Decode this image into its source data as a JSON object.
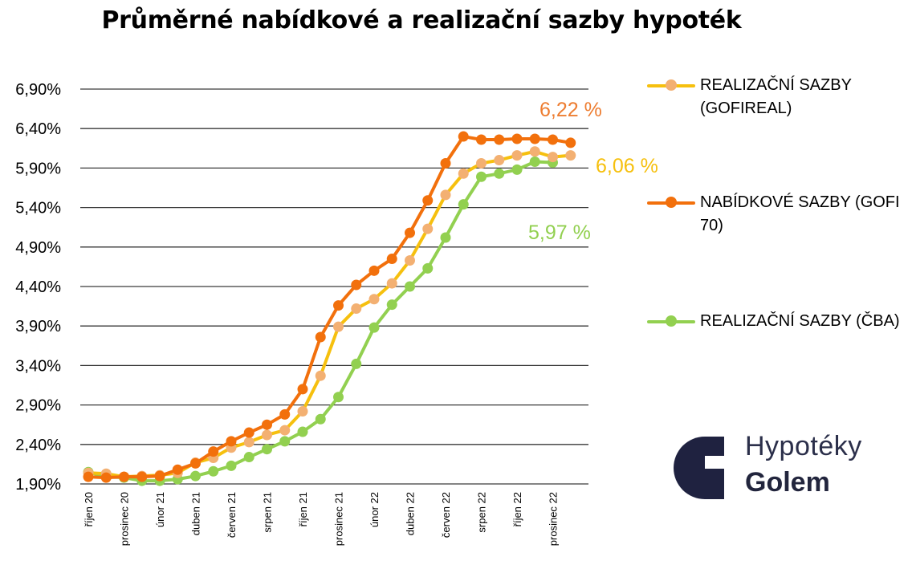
{
  "chart_data": {
    "type": "line",
    "title": "Průměrné nabídkové a realizační sazby hypoték",
    "y_ticks": [
      "6,90%",
      "6,40%",
      "5,90%",
      "5,40%",
      "4,90%",
      "4,40%",
      "3,90%",
      "3,40%",
      "2,90%",
      "2,40%",
      "1,90%"
    ],
    "ylim": [
      1.9,
      6.9
    ],
    "grid": "horizontal",
    "legend_position": "right",
    "x_tick_labels": [
      "říjen 20",
      "prosinec 20",
      "únor 21",
      "duben 21",
      "červen 21",
      "srpen 21",
      "říjen 21",
      "prosinec 21",
      "únor 22",
      "duben 22",
      "červen 22",
      "srpen 22",
      "říjen 22",
      "prosinec 22"
    ],
    "x_months": [
      "10/2020",
      "11/2020",
      "12/2020",
      "01/2021",
      "02/2021",
      "03/2021",
      "04/2021",
      "05/2021",
      "06/2021",
      "07/2021",
      "08/2021",
      "09/2021",
      "10/2021",
      "11/2021",
      "12/2021",
      "01/2022",
      "02/2022",
      "03/2022",
      "04/2022",
      "05/2022",
      "06/2022",
      "07/2022",
      "08/2022",
      "09/2022",
      "10/2022",
      "11/2022",
      "12/2022",
      "01/2023",
      "02/2023"
    ],
    "series": [
      {
        "name": "REALIZAČNÍ SAZBY (GOFIREAL)",
        "color": "#f6c00e",
        "marker_color": "#f3b072",
        "values": [
          2.04,
          2.03,
          1.99,
          2.0,
          2.01,
          2.04,
          2.17,
          2.23,
          2.36,
          2.43,
          2.52,
          2.58,
          2.82,
          3.27,
          3.89,
          4.12,
          4.24,
          4.44,
          4.73,
          5.13,
          5.56,
          5.83,
          5.96,
          6.0,
          6.06,
          6.11,
          6.04,
          6.06
        ],
        "end_label": "6,06 %"
      },
      {
        "name": "NABÍDKOVÉ SAZBY (GOFI 70)",
        "color": "#f2700c",
        "marker_color": "#f2700c",
        "values": [
          1.99,
          1.98,
          1.99,
          1.99,
          2.0,
          2.08,
          2.16,
          2.31,
          2.44,
          2.55,
          2.65,
          2.78,
          3.1,
          3.76,
          4.16,
          4.42,
          4.6,
          4.75,
          5.08,
          5.49,
          5.96,
          6.3,
          6.26,
          6.26,
          6.27,
          6.27,
          6.26,
          6.22
        ],
        "end_label": "6,22 %"
      },
      {
        "name": "REALIZAČNÍ SAZBY (ČBA)",
        "color": "#92d050",
        "marker_color": "#92d050",
        "values": [
          2.05,
          1.99,
          1.98,
          1.94,
          1.94,
          1.96,
          2.0,
          2.06,
          2.13,
          2.24,
          2.34,
          2.44,
          2.56,
          2.72,
          3.0,
          3.42,
          3.88,
          4.17,
          4.4,
          4.63,
          5.02,
          5.44,
          5.79,
          5.83,
          5.88,
          5.98,
          5.97
        ],
        "end_label": "5,97 %"
      }
    ]
  },
  "legend": [
    {
      "label": "REALIZAČNÍ SAZBY (GOFIREAL)",
      "color": "#f6c00e",
      "marker_color": "#f3b072"
    },
    {
      "label": "NABÍDKOVÉ SAZBY (GOFI 70)",
      "color": "#f2700c",
      "marker_color": "#f2700c"
    },
    {
      "label": "REALIZAČNÍ SAZBY (ČBA)",
      "color": "#92d050",
      "marker_color": "#92d050"
    }
  ],
  "logo": {
    "line1": "Hypotéky",
    "line2": "Golem",
    "color": "#1f2240"
  }
}
